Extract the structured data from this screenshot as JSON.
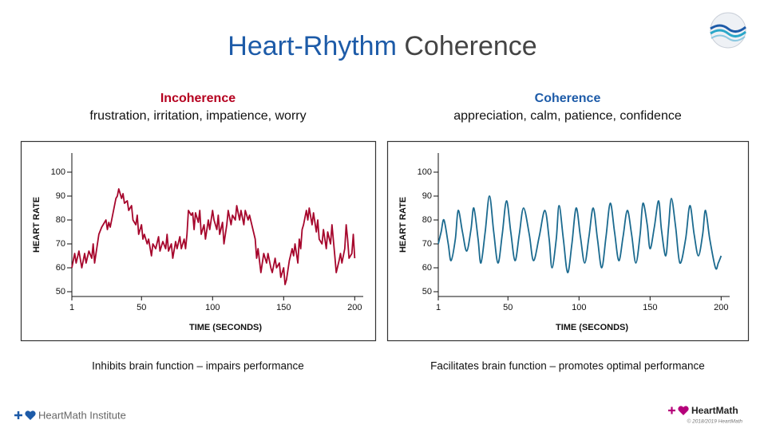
{
  "title": {
    "parts": [
      {
        "text": "Heart-Rhythm",
        "color": "#1d5ba8"
      },
      {
        "text": "Coherence",
        "color": "#444444"
      }
    ]
  },
  "chart_data": [
    {
      "type": "line",
      "title": "Incoherence",
      "title_color": "#b5001f",
      "subtitle": "frustration, irritation, impatience, worry",
      "caption": "Inhibits brain function – impairs performance",
      "xlabel": "TIME (SECONDS)",
      "ylabel": "HEART RATE",
      "smooth": false,
      "x": [
        1,
        3,
        4,
        6,
        8,
        10,
        11,
        13,
        15,
        16,
        17,
        18,
        20,
        22,
        23,
        25,
        26,
        27,
        28,
        30,
        32,
        33,
        34,
        36,
        37,
        38,
        40,
        41,
        43,
        44,
        46,
        47,
        48,
        50,
        51,
        52,
        54,
        55,
        57,
        58,
        60,
        62,
        63,
        65,
        67,
        68,
        69,
        71,
        72,
        74,
        75,
        77,
        78,
        80,
        81,
        82,
        83,
        85,
        86,
        87,
        88,
        90,
        91,
        92,
        94,
        95,
        97,
        98,
        100,
        101,
        103,
        104,
        105,
        107,
        108,
        110,
        111,
        113,
        114,
        116,
        117,
        119,
        120,
        122,
        123,
        125,
        126,
        128,
        130,
        131,
        132,
        134,
        136,
        138,
        139,
        141,
        142,
        144,
        145,
        147,
        148,
        150,
        151,
        152,
        154,
        156,
        157,
        158,
        160,
        161,
        162,
        163,
        164,
        166,
        167,
        168,
        170,
        171,
        173,
        174,
        175,
        177,
        178,
        180,
        181,
        183,
        184,
        186,
        187,
        189,
        190,
        191,
        193,
        194,
        195,
        196,
        198,
        199,
        200
      ],
      "series": [
        {
          "color": "#a6062c",
          "values": [
            60,
            66,
            62,
            67,
            60,
            66,
            62,
            67,
            64,
            70,
            62,
            66,
            74,
            77,
            78,
            80,
            76,
            79,
            77,
            83,
            89,
            90,
            93,
            89,
            91,
            87,
            88,
            84,
            86,
            80,
            78,
            82,
            74,
            78,
            72,
            74,
            70,
            72,
            65,
            70,
            68,
            73,
            67,
            71,
            68,
            74,
            67,
            70,
            64,
            71,
            68,
            73,
            68,
            72,
            68,
            74,
            84,
            82,
            83,
            76,
            83,
            79,
            84,
            74,
            78,
            72,
            80,
            76,
            84,
            80,
            76,
            82,
            74,
            79,
            70,
            78,
            84,
            78,
            82,
            80,
            86,
            80,
            84,
            78,
            84,
            80,
            82,
            77,
            72,
            64,
            68,
            58,
            66,
            62,
            66,
            60,
            58,
            64,
            60,
            62,
            56,
            60,
            53,
            55,
            63,
            68,
            65,
            70,
            62,
            72,
            68,
            76,
            78,
            84,
            80,
            85,
            78,
            83,
            75,
            80,
            72,
            70,
            76,
            68,
            75,
            70,
            78,
            65,
            58,
            63,
            66,
            62,
            68,
            78,
            72,
            64,
            66,
            74,
            64
          ]
        }
      ],
      "xlim": [
        1,
        206
      ],
      "ylim": [
        48,
        108
      ],
      "xticks": [
        1,
        50,
        100,
        150,
        200
      ],
      "yticks": [
        50,
        60,
        70,
        80,
        90,
        100
      ]
    },
    {
      "type": "line",
      "title": "Coherence",
      "title_color": "#1d5ba8",
      "subtitle": "appreciation, calm, patience, confidence",
      "caption": "Facilitates brain function – promotes optimal performance",
      "xlabel": "TIME (SECONDS)",
      "ylabel": "HEART RATE",
      "smooth": true,
      "x": [
        1,
        3,
        5,
        8,
        10,
        13,
        15,
        18,
        21,
        24,
        26,
        29,
        31,
        34,
        37,
        40,
        43,
        46,
        49,
        52,
        55,
        58,
        61,
        65,
        68,
        72,
        76,
        79,
        81,
        84,
        86,
        89,
        92,
        95,
        98,
        101,
        104,
        107,
        110,
        113,
        116,
        119,
        122,
        125,
        128,
        131,
        134,
        137,
        140,
        143,
        145,
        148,
        150,
        153,
        156,
        158,
        161,
        163,
        165,
        168,
        171,
        175,
        178,
        181,
        184,
        187,
        189,
        192,
        196,
        198,
        200
      ],
      "series": [
        {
          "color": "#1b6a8f",
          "values": [
            70,
            75,
            80,
            70,
            63,
            72,
            84,
            75,
            67,
            76,
            85,
            72,
            62,
            75,
            90,
            75,
            62,
            74,
            88,
            75,
            63,
            74,
            85,
            74,
            63,
            73,
            84,
            72,
            60,
            72,
            86,
            72,
            58,
            70,
            85,
            73,
            62,
            73,
            85,
            72,
            60,
            73,
            87,
            75,
            63,
            73,
            84,
            74,
            62,
            74,
            87,
            78,
            68,
            77,
            88,
            76,
            65,
            77,
            89,
            77,
            62,
            72,
            86,
            74,
            65,
            74,
            84,
            72,
            60,
            62,
            65
          ]
        }
      ],
      "xlim": [
        1,
        206
      ],
      "ylim": [
        48,
        108
      ],
      "xticks": [
        1,
        50,
        100,
        150,
        200
      ],
      "yticks": [
        50,
        60,
        70,
        80,
        90,
        100
      ]
    }
  ],
  "footer": {
    "left": "HeartMath Institute",
    "right": "HeartMath",
    "copyright": "© 2018/2019 HeartMath"
  }
}
